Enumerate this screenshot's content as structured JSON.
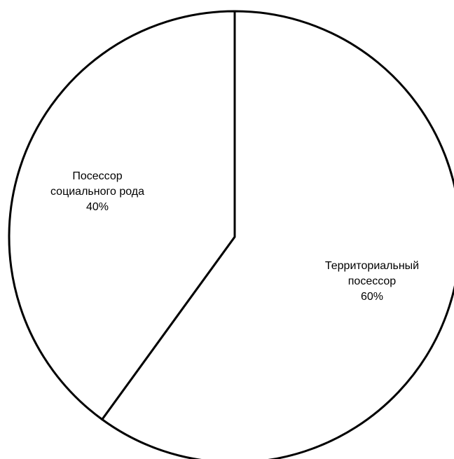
{
  "chart_data": {
    "type": "pie",
    "categories": [
      "Территориальный\nпосессор",
      "Посессор\nсоциального рода"
    ],
    "values": [
      60,
      40
    ],
    "value_labels": [
      "60%",
      "40%"
    ],
    "colors": [
      "#ffffff",
      "#ffffff"
    ],
    "start_angle": 0,
    "direction": "clockwise"
  }
}
